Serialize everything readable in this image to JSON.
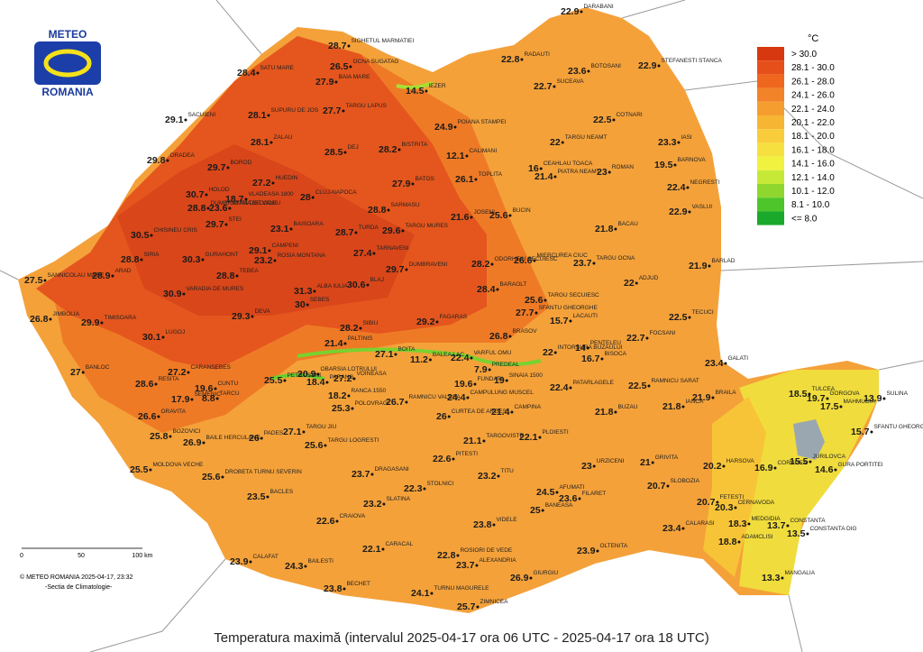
{
  "logo": {
    "line1": "METEO",
    "line2": "ROMANIA"
  },
  "legend": {
    "unit": "°C",
    "items": [
      {
        "label": "> 30.0",
        "color": "#d8380f"
      },
      {
        "label": "28.1 - 30.0",
        "color": "#e64f1a"
      },
      {
        "label": "26.1 - 28.0",
        "color": "#ef671f"
      },
      {
        "label": "24.1 - 26.0",
        "color": "#f38329"
      },
      {
        "label": "22.1 - 24.0",
        "color": "#f59e2f"
      },
      {
        "label": "20.1 - 22.0",
        "color": "#f7b534"
      },
      {
        "label": "18.1 - 20.0",
        "color": "#f9cc3b"
      },
      {
        "label": "16.1 - 18.0",
        "color": "#f6e040"
      },
      {
        "label": "14.1 - 16.0",
        "color": "#f1f23f"
      },
      {
        "label": "12.1 - 14.0",
        "color": "#c6e938"
      },
      {
        "label": "10.1 - 12.0",
        "color": "#8fd72f"
      },
      {
        "label": "8.1 - 10.0",
        "color": "#4ec52a"
      },
      {
        "label": "<= 8.0",
        "color": "#1aa92b"
      }
    ]
  },
  "stations": [
    {
      "name": "SIGHETUL MARMATIEI",
      "value": 28.7
    },
    {
      "name": "SATU MARE",
      "value": 28.4
    },
    {
      "name": "BAIA MARE",
      "value": 27.9
    },
    {
      "name": "OCNA SUGATAG",
      "value": 26.5
    },
    {
      "name": "IEZER",
      "value": 14.5
    },
    {
      "name": "SACUIENI",
      "value": 29.1
    },
    {
      "name": "SUPURU DE JOS",
      "value": 28.1
    },
    {
      "name": "TARGU LAPUS",
      "value": 27.7
    },
    {
      "name": "ORADEA",
      "value": 29.8
    },
    {
      "name": "ZALAU",
      "value": 28.1
    },
    {
      "name": "DEJ",
      "value": 28.5
    },
    {
      "name": "BISTRITA",
      "value": 28.2
    },
    {
      "name": "CALIMANI",
      "value": 12.1
    },
    {
      "name": "POIANA STAMPEI",
      "value": 24.9
    },
    {
      "name": "RADAUTI",
      "value": 22.8
    },
    {
      "name": "DARABANI",
      "value": 22.9
    },
    {
      "name": "BOTOSANI",
      "value": 23.6
    },
    {
      "name": "STEFANESTI STANCA",
      "value": 22.9
    },
    {
      "name": "SUCEAVA",
      "value": 22.7
    },
    {
      "name": "COTNARI",
      "value": 22.5
    },
    {
      "name": "TARGU NEAMT",
      "value": 22
    },
    {
      "name": "IASI",
      "value": 23.3
    },
    {
      "name": "BOROD",
      "value": 29.7
    },
    {
      "name": "HOLOD",
      "value": 30.7
    },
    {
      "name": "HUEDIN",
      "value": 27.2
    },
    {
      "name": "CLUJ-NAPOCA",
      "value": 28
    },
    {
      "name": "SARMASU",
      "value": 28.8
    },
    {
      "name": "BATOS",
      "value": 27.9
    },
    {
      "name": "TOPLITA",
      "value": 26.1
    },
    {
      "name": "CEAHLAU TOACA",
      "value": 16
    },
    {
      "name": "PIATRA NEAMT",
      "value": 21.4
    },
    {
      "name": "ROMAN",
      "value": 23
    },
    {
      "name": "BARNOVA",
      "value": 19.5
    },
    {
      "name": "NEGRESTI",
      "value": 22.4
    },
    {
      "name": "VASLUI",
      "value": 22.9
    },
    {
      "name": "BACAU",
      "value": 21.8
    },
    {
      "name": "JOSENI",
      "value": 21.6
    },
    {
      "name": "BUCIN",
      "value": 25.6
    },
    {
      "name": "MIERCUREA CIUC",
      "value": 26.6
    },
    {
      "name": "TARGU MURES",
      "value": 29.6
    },
    {
      "name": "TURDA",
      "value": 28.7
    },
    {
      "name": "BAISOARA",
      "value": 23.1
    },
    {
      "name": "CAMPENI",
      "value": 29.1
    },
    {
      "name": "ROSIA MONTANA",
      "value": 23.2
    },
    {
      "name": "CHISINEU CRIS",
      "value": 30.5
    },
    {
      "name": "STEI",
      "value": 29.7
    },
    {
      "name": "SANNICOLAU MARE",
      "value": 27.5
    },
    {
      "name": "ARAD",
      "value": 28.9
    },
    {
      "name": "SIRIA",
      "value": 28.8
    },
    {
      "name": "GURAHONT",
      "value": 30.3
    },
    {
      "name": "VLADEASA 1800",
      "value": 18.7
    },
    {
      "name": "STANA DE VALE",
      "value": 23.6
    },
    {
      "name": "DUMBRAVITA DE CODRU",
      "value": 28.8
    },
    {
      "name": "TARNAVENI",
      "value": 27.4
    },
    {
      "name": "ODORHEIU SECUIESC",
      "value": 28.2
    },
    {
      "name": "DUMBRAVENI",
      "value": 29.7
    },
    {
      "name": "BLAJ",
      "value": 30.6
    },
    {
      "name": "ALBA IULIA",
      "value": 31.3
    },
    {
      "name": "SEBES",
      "value": 30
    },
    {
      "name": "TEBEA",
      "value": 28.8
    },
    {
      "name": "VARADIA DE MURES",
      "value": 30.9
    },
    {
      "name": "DEVA",
      "value": 29.3
    },
    {
      "name": "JIMBOLIA",
      "value": 26.8
    },
    {
      "name": "TIMISOARA",
      "value": 29.9
    },
    {
      "name": "LUGOJ",
      "value": 30.1
    },
    {
      "name": "SIBIU",
      "value": 28.2
    },
    {
      "name": "FAGARAS",
      "value": 29.2
    },
    {
      "name": "BRASOV",
      "value": 26.8
    },
    {
      "name": "SFANTU GHEORGHE",
      "value": 27.7
    },
    {
      "name": "BARAOLT",
      "value": 28.4
    },
    {
      "name": "TARGU SECUIESC",
      "value": 25.6
    },
    {
      "name": "TARGU OCNA",
      "value": 23.7
    },
    {
      "name": "ADJUD",
      "value": 22
    },
    {
      "name": "BARLAD",
      "value": 21.9
    },
    {
      "name": "TECUCI",
      "value": 22.5
    },
    {
      "name": "FOCSANI",
      "value": 22.7
    },
    {
      "name": "GALATI",
      "value": 23.4
    },
    {
      "name": "LACAUTI",
      "value": 15.7
    },
    {
      "name": "INTORSURA BUZAULUI",
      "value": 22
    },
    {
      "name": "PENTELEU",
      "value": 14
    },
    {
      "name": "BISOCA",
      "value": 16.7
    },
    {
      "name": "PALTINIS",
      "value": 21.4
    },
    {
      "name": "BALEA LAC",
      "value": 11.2
    },
    {
      "name": "BOITA",
      "value": 27.1
    },
    {
      "name": "VARFUL OMU",
      "value": 22.4
    },
    {
      "name": "PREDEAL",
      "value": 7.9
    },
    {
      "name": "SINAIA 1500",
      "value": 19
    },
    {
      "name": "FUNDATA",
      "value": 19.6
    },
    {
      "name": "BANLOC",
      "value": 27
    },
    {
      "name": "CARANSEBES",
      "value": 27.2
    },
    {
      "name": "RESITA",
      "value": 28.6
    },
    {
      "name": "CUNTU",
      "value": 19.6
    },
    {
      "name": "TARCU",
      "value": 8.8
    },
    {
      "name": "SEMENIC",
      "value": 17.9
    },
    {
      "name": "PETROSANI",
      "value": 25.5
    },
    {
      "name": "OBARSIA LOTRULUI",
      "value": 20.9
    },
    {
      "name": "PARANG",
      "value": 18.4
    },
    {
      "name": "VOINEASA",
      "value": 27.2
    },
    {
      "name": "RANCA 1550",
      "value": 18.2
    },
    {
      "name": "ORAVITA",
      "value": 26.6
    },
    {
      "name": "TARGU JIU",
      "value": 27.1
    },
    {
      "name": "POLOVRAGI",
      "value": 25.3
    },
    {
      "name": "RAMNICU VALCEA",
      "value": 26.7
    },
    {
      "name": "CURTEA DE ARGES",
      "value": 26
    },
    {
      "name": "CAMPULUNG MUSCEL",
      "value": 24.4
    },
    {
      "name": "CAMPINA",
      "value": 21.4
    },
    {
      "name": "PATARLAGELE",
      "value": 22.4
    },
    {
      "name": "RAMNICU SARAT",
      "value": 22.5
    },
    {
      "name": "BRAILA",
      "value": 21.9
    },
    {
      "name": "TULCEA",
      "value": 18.5
    },
    {
      "name": "GORGOVA",
      "value": 19.7
    },
    {
      "name": "MAHMUDIA",
      "value": 17.5
    },
    {
      "name": "SULINA",
      "value": 13.9
    },
    {
      "name": "SFANTU GHEORGHE",
      "value": 15.7
    },
    {
      "name": "IANCA",
      "value": 21.8
    },
    {
      "name": "BUZAU",
      "value": 21.8
    },
    {
      "name": "PLOIESTI",
      "value": 22.1
    },
    {
      "name": "TARGOVISTE",
      "value": 21.1
    },
    {
      "name": "PITESTI",
      "value": 22.6
    },
    {
      "name": "DRAGASANI",
      "value": 23.7
    },
    {
      "name": "TARGU LOGRESTI",
      "value": 25.6
    },
    {
      "name": "BAILE HERCULANE",
      "value": 26.9
    },
    {
      "name": "PADES",
      "value": 26
    },
    {
      "name": "MOLDOVA VECHE",
      "value": 25.5
    },
    {
      "name": "BOZOVICI",
      "value": 25.8
    },
    {
      "name": "DROBETA TURNU SEVERIN",
      "value": 25.6
    },
    {
      "name": "BACLES",
      "value": 23.5
    },
    {
      "name": "SLATINA",
      "value": 23.2
    },
    {
      "name": "STOLNICI",
      "value": 22.3
    },
    {
      "name": "TITU",
      "value": 23.2
    },
    {
      "name": "URZICENI",
      "value": 23
    },
    {
      "name": "GRIVITA",
      "value": 21
    },
    {
      "name": "HARSOVA",
      "value": 20.2
    },
    {
      "name": "CORUGEA",
      "value": 16.9
    },
    {
      "name": "JURILOVCA",
      "value": 15.5
    },
    {
      "name": "GURA PORTITEI",
      "value": 14.6
    },
    {
      "name": "SLOBOZIA",
      "value": 20.7
    },
    {
      "name": "AFUMATI",
      "value": 24.5
    },
    {
      "name": "BANEASA",
      "value": 25
    },
    {
      "name": "FILARET",
      "value": 23.6
    },
    {
      "name": "FETESTI",
      "value": 20.7
    },
    {
      "name": "CERNAVODA",
      "value": 20.3
    },
    {
      "name": "MEDGIDIA",
      "value": 18.3
    },
    {
      "name": "CONSTANTA",
      "value": 13.7
    },
    {
      "name": "CONSTANTA DIG",
      "value": 13.5
    },
    {
      "name": "ADAMCLISI",
      "value": 18.8
    },
    {
      "name": "MANGALIA",
      "value": 13.3
    },
    {
      "name": "CALARASI",
      "value": 23.4
    },
    {
      "name": "OLTENITA",
      "value": 23.9
    },
    {
      "name": "VIDELE",
      "value": 23.8
    },
    {
      "name": "CRAIOVA",
      "value": 22.6
    },
    {
      "name": "CARACAL",
      "value": 22.1
    },
    {
      "name": "ROSIORI DE VEDE",
      "value": 22.8
    },
    {
      "name": "ALEXANDRIA",
      "value": 23.7
    },
    {
      "name": "BAILESTI",
      "value": 24.3
    },
    {
      "name": "CALAFAT",
      "value": 23.9
    },
    {
      "name": "BECHET",
      "value": 23.8
    },
    {
      "name": "TURNU MAGURELE",
      "value": 24.1
    },
    {
      "name": "ZIMNICEA",
      "value": 25.7
    },
    {
      "name": "GIURGIU",
      "value": 26.9
    }
  ],
  "scale": {
    "ticks": [
      "0",
      "50",
      "100 km"
    ]
  },
  "credit": {
    "line1": "© METEO ROMANIA 2025-04-17, 23:32",
    "line2": "-Sectia de Climatologie-"
  },
  "caption": "Temperatura maximă (intervalul 2025-04-17 ora 06 UTC - 2025-04-17 ora 18 UTC)"
}
